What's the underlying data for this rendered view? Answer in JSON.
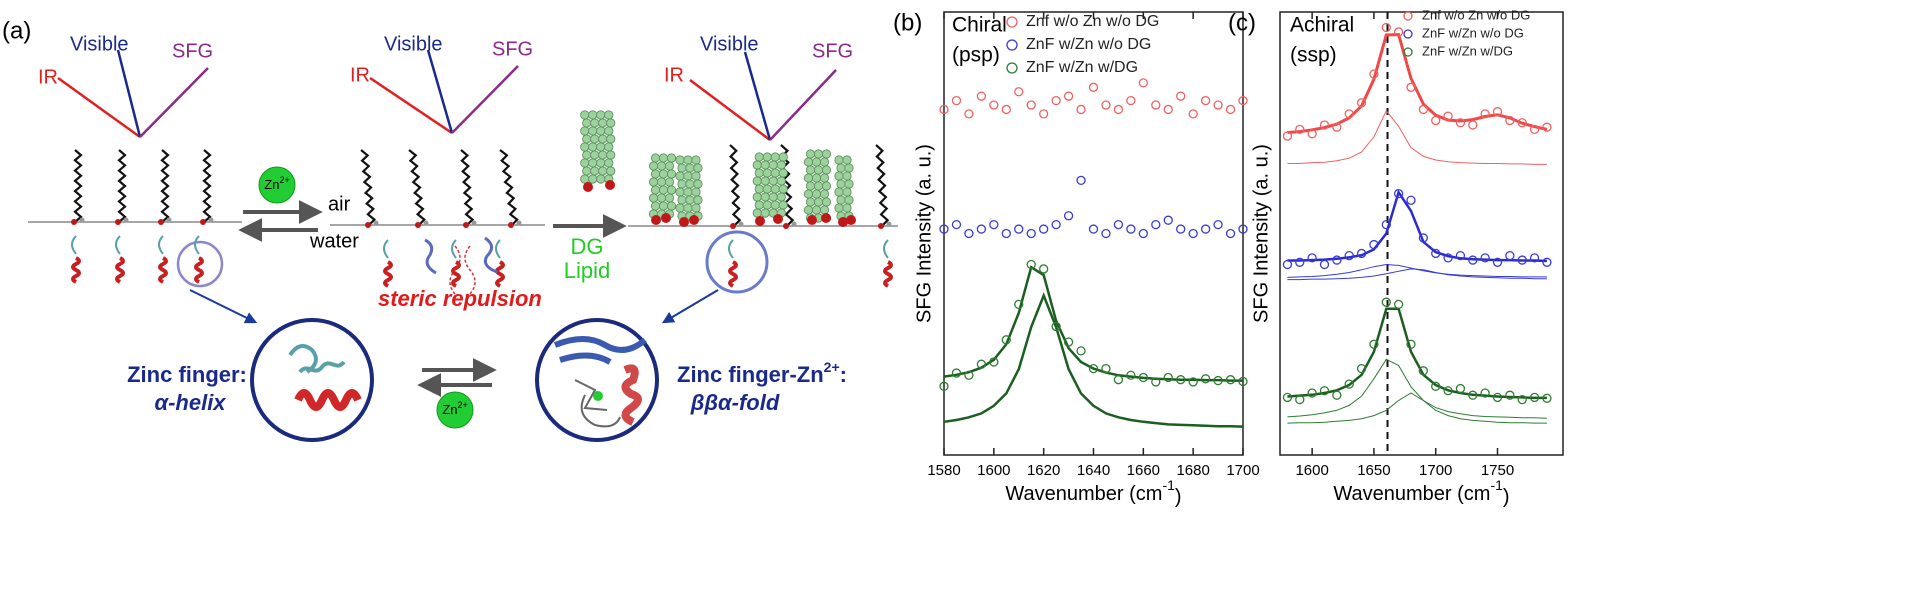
{
  "diagram": {
    "panel_label": "(a)",
    "ir": "IR",
    "visible": "Visible",
    "sfg": "SFG",
    "zn": "Zn",
    "zn_charge": "2+",
    "air": "air",
    "water": "water",
    "steric": "steric repulsion",
    "dg": "DG",
    "lipid": "Lipid",
    "left_caption": [
      "Zinc finger:",
      "α-helix"
    ],
    "right_caption_main": "Zinc finger-Zn",
    "right_caption_charge": "2+",
    "right_caption_end": ":",
    "right_caption_fold": "ββα-fold"
  },
  "chart_data": [
    {
      "type": "scatter",
      "panel_label": "(b)",
      "title": "Chiral",
      "subtitle": "(psp)",
      "ylabel": "SFG Intensity (a. u.)",
      "xlabel": "Wavenumber (cm",
      "xlabel_sup": "-1",
      "xlabel_end": ")",
      "xlim": [
        1580,
        1700
      ],
      "xticks": [
        1580,
        1600,
        1620,
        1640,
        1660,
        1680,
        1700
      ],
      "ylim": [
        0,
        10
      ],
      "x": [
        1580,
        1585,
        1590,
        1595,
        1600,
        1605,
        1610,
        1615,
        1620,
        1625,
        1630,
        1635,
        1640,
        1645,
        1650,
        1655,
        1660,
        1665,
        1670,
        1675,
        1680,
        1685,
        1690,
        1695,
        1700
      ],
      "series": [
        {
          "name": "Znf w/o Zn w/o DG",
          "color": "#f06060",
          "values": [
            7.8,
            8.0,
            7.7,
            8.1,
            7.9,
            7.8,
            8.2,
            7.9,
            7.7,
            8.0,
            8.1,
            7.8,
            8.3,
            7.9,
            7.8,
            8.0,
            8.4,
            7.9,
            7.8,
            8.1,
            7.7,
            8.0,
            7.9,
            7.8,
            8.0
          ]
        },
        {
          "name": "ZnF w/Zn w/o DG",
          "color": "#3a3ad8",
          "values": [
            5.1,
            5.2,
            5.0,
            5.1,
            5.2,
            5.0,
            5.1,
            5.0,
            5.1,
            5.2,
            5.4,
            6.2,
            5.1,
            5.0,
            5.2,
            5.1,
            5.0,
            5.2,
            5.3,
            5.1,
            5.0,
            5.1,
            5.2,
            5.0,
            5.1
          ]
        },
        {
          "name": "ZnF w/Zn w/DG",
          "color": "#2e7d32",
          "values": [
            1.55,
            1.85,
            1.8,
            2.05,
            2.1,
            2.6,
            3.4,
            4.3,
            4.2,
            2.9,
            2.55,
            2.35,
            1.95,
            1.95,
            1.7,
            1.8,
            1.75,
            1.65,
            1.75,
            1.7,
            1.65,
            1.72,
            1.68,
            1.7,
            1.66
          ]
        }
      ],
      "fits": [
        {
          "color": "#1b5e20",
          "values": [
            1.77,
            1.81,
            1.87,
            1.97,
            2.15,
            2.5,
            3.21,
            4.24,
            4.06,
            3.03,
            2.41,
            2.1,
            1.95,
            1.86,
            1.8,
            1.77,
            1.74,
            1.72,
            1.71,
            1.7,
            1.7,
            1.69,
            1.69,
            1.68,
            1.68
          ]
        },
        {
          "color": "#1b5e20",
          "values": [
            0.75,
            0.79,
            0.85,
            0.94,
            1.11,
            1.39,
            1.94,
            2.89,
            3.6,
            2.89,
            1.94,
            1.39,
            1.11,
            0.94,
            0.85,
            0.79,
            0.75,
            0.72,
            0.69,
            0.68,
            0.67,
            0.66,
            0.65,
            0.65,
            0.64
          ]
        }
      ]
    },
    {
      "type": "scatter",
      "panel_label": "(c)",
      "title": "Achiral",
      "subtitle": "(ssp)",
      "ylabel": "SFG Intensity (a. u.)",
      "xlabel": "Wavenumber (cm",
      "xlabel_sup": "-1",
      "xlabel_end": ")",
      "xlim": [
        1574,
        1803
      ],
      "xticks": [
        1600,
        1650,
        1700,
        1750
      ],
      "ylim": [
        0,
        10
      ],
      "vline": 1661,
      "x": [
        1580,
        1590,
        1600,
        1610,
        1620,
        1630,
        1640,
        1650,
        1660,
        1670,
        1680,
        1690,
        1700,
        1710,
        1720,
        1730,
        1740,
        1750,
        1760,
        1770,
        1780,
        1790
      ],
      "series": [
        {
          "name": "Znf w/o Zn w/o DG",
          "color": "#f06060",
          "values": [
            7.2,
            7.35,
            7.25,
            7.45,
            7.4,
            7.7,
            7.95,
            8.6,
            9.65,
            9.55,
            8.3,
            7.8,
            7.55,
            7.65,
            7.5,
            7.45,
            7.7,
            7.75,
            7.55,
            7.5,
            7.35,
            7.4
          ]
        },
        {
          "name": "ZnF w/Zn w/o DG",
          "color": "#3a3ad8",
          "values": [
            4.3,
            4.35,
            4.45,
            4.3,
            4.4,
            4.5,
            4.55,
            4.75,
            5.2,
            5.9,
            5.75,
            4.9,
            4.55,
            4.45,
            4.5,
            4.4,
            4.45,
            4.35,
            4.5,
            4.4,
            4.45,
            4.35
          ]
        },
        {
          "name": "ZnF w/Zn w/DG",
          "color": "#2e7d32",
          "values": [
            1.3,
            1.25,
            1.4,
            1.45,
            1.35,
            1.6,
            1.95,
            2.5,
            3.45,
            3.4,
            2.5,
            1.9,
            1.55,
            1.45,
            1.5,
            1.35,
            1.4,
            1.3,
            1.35,
            1.25,
            1.3,
            1.28
          ]
        }
      ],
      "fits": [
        {
          "color": "#f04848",
          "width": 3,
          "values": [
            7.28,
            7.3,
            7.34,
            7.39,
            7.47,
            7.61,
            7.88,
            8.48,
            9.48,
            9.49,
            8.5,
            7.92,
            7.67,
            7.56,
            7.54,
            7.57,
            7.64,
            7.68,
            7.61,
            7.49,
            7.41,
            7.35
          ]
        },
        {
          "color": "#f06060",
          "width": 1,
          "values": [
            6.58,
            6.58,
            6.6,
            6.61,
            6.64,
            6.7,
            6.84,
            7.18,
            7.77,
            7.42,
            6.94,
            6.74,
            6.66,
            6.62,
            6.6,
            6.59,
            6.58,
            6.58,
            6.57,
            6.57,
            6.56,
            6.56
          ]
        },
        {
          "color": "#2a2ad0",
          "width": 2.5,
          "values": [
            4.39,
            4.39,
            4.4,
            4.41,
            4.43,
            4.46,
            4.51,
            4.64,
            5.0,
            5.93,
            5.51,
            4.81,
            4.58,
            4.49,
            4.44,
            4.42,
            4.41,
            4.4,
            4.4,
            4.39,
            4.39,
            4.38
          ]
        },
        {
          "color": "#3a3ad8",
          "width": 1,
          "values": [
            4.01,
            4.02,
            4.03,
            4.05,
            4.08,
            4.12,
            4.18,
            4.25,
            4.3,
            4.28,
            4.22,
            4.16,
            4.11,
            4.08,
            4.06,
            4.05,
            4.04,
            4.03,
            4.03,
            4.02,
            4.02,
            4.02
          ]
        },
        {
          "color": "#3a3ad8",
          "width": 1,
          "values": [
            3.96,
            3.96,
            3.97,
            3.97,
            3.98,
            3.99,
            4.01,
            4.04,
            4.09,
            4.15,
            4.2,
            4.18,
            4.12,
            4.07,
            4.04,
            4.02,
            4.01,
            4.0,
            3.99,
            3.99,
            3.98,
            3.98
          ]
        },
        {
          "color": "#1b5e20",
          "width": 2.5,
          "values": [
            1.32,
            1.34,
            1.36,
            1.4,
            1.46,
            1.58,
            1.81,
            2.33,
            3.3,
            3.3,
            2.33,
            1.81,
            1.58,
            1.46,
            1.4,
            1.36,
            1.34,
            1.32,
            1.31,
            1.3,
            1.29,
            1.29
          ]
        },
        {
          "color": "#2e7d32",
          "width": 1,
          "values": [
            0.86,
            0.88,
            0.91,
            0.95,
            1.01,
            1.12,
            1.33,
            1.72,
            2.16,
            2.02,
            1.54,
            1.23,
            1.07,
            0.98,
            0.93,
            0.89,
            0.87,
            0.86,
            0.85,
            0.84,
            0.84,
            0.83
          ]
        },
        {
          "color": "#2e7d32",
          "width": 1,
          "values": [
            0.72,
            0.73,
            0.73,
            0.74,
            0.76,
            0.78,
            0.82,
            0.89,
            1.01,
            1.23,
            1.4,
            1.23,
            1.01,
            0.89,
            0.82,
            0.78,
            0.76,
            0.74,
            0.73,
            0.73,
            0.72,
            0.72
          ]
        }
      ]
    }
  ]
}
